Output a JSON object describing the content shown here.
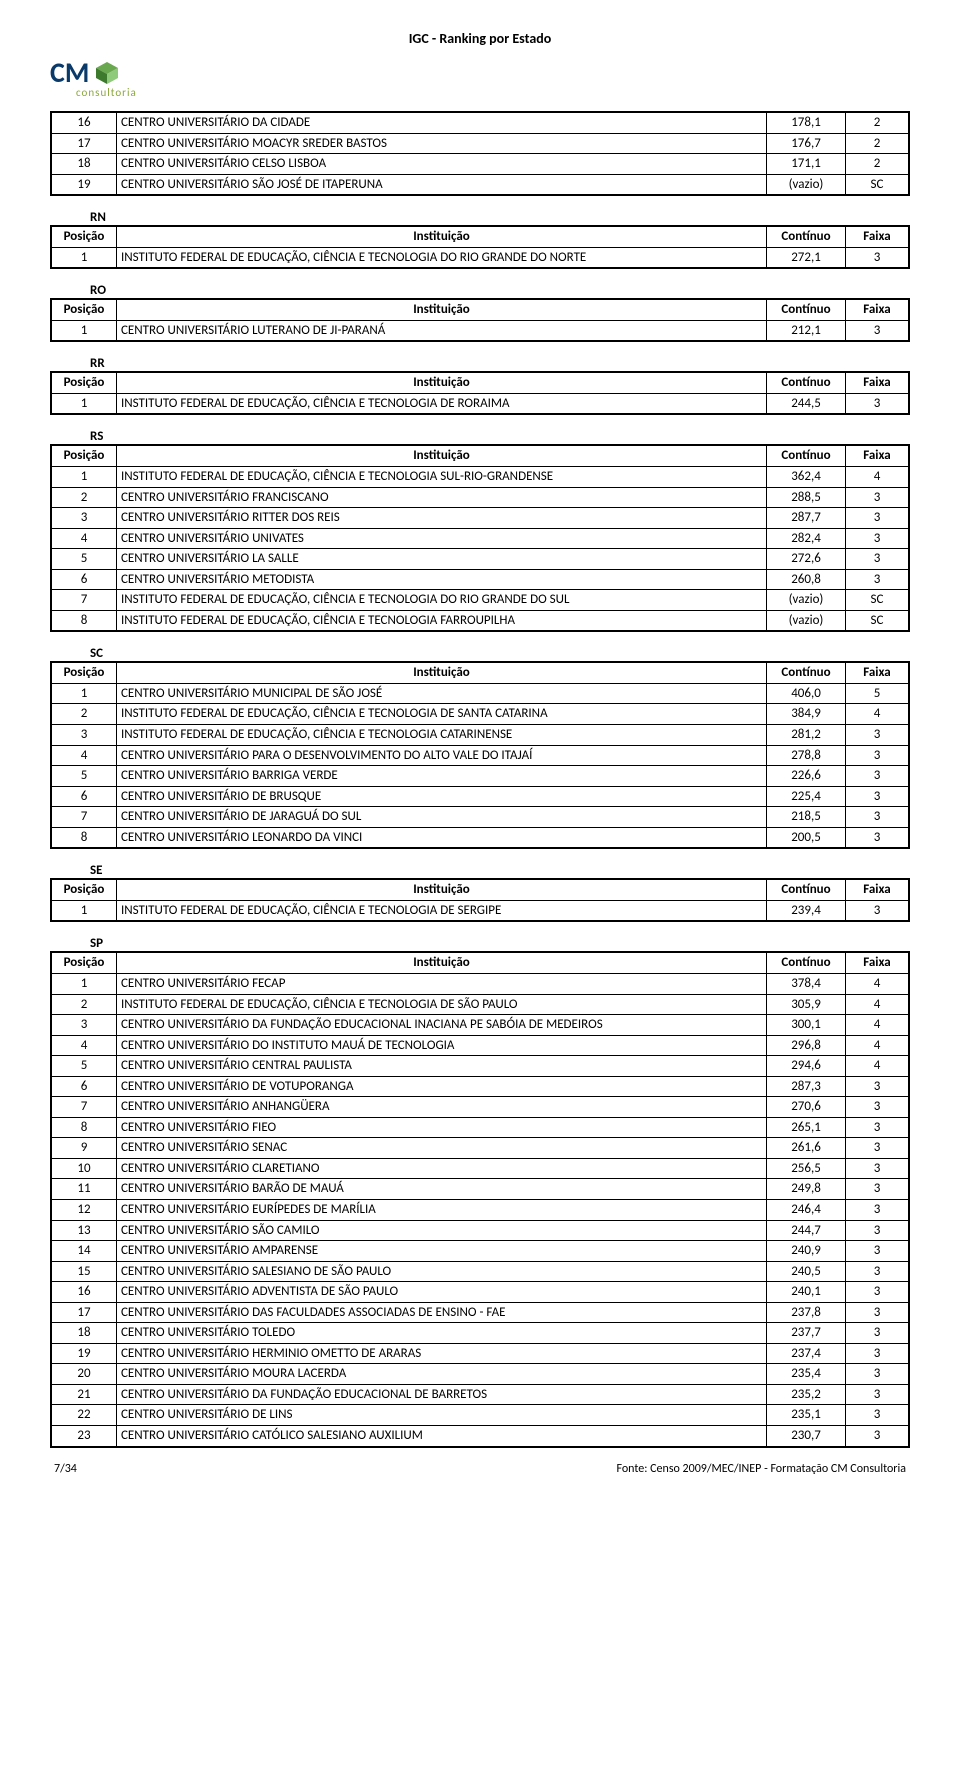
{
  "header_title": "IGC - Ranking por Estado",
  "logo_text": "CM",
  "logo_sub": "consultoria",
  "col_headers": {
    "posicao": "Posição",
    "instituicao": "Instituição",
    "continuo": "Contínuo",
    "faixa": "Faixa"
  },
  "footer": {
    "page": "7/34",
    "source": "Fonte: Censo 2009/MEC/INEP - Formatação CM Consultoria"
  },
  "sections": [
    {
      "state": "",
      "continuation": true,
      "rows": [
        {
          "pos": "16",
          "inst": "CENTRO UNIVERSITÁRIO DA CIDADE",
          "cont": "178,1",
          "faixa": "2"
        },
        {
          "pos": "17",
          "inst": "CENTRO UNIVERSITÁRIO MOACYR SREDER BASTOS",
          "cont": "176,7",
          "faixa": "2"
        },
        {
          "pos": "18",
          "inst": "CENTRO UNIVERSITÁRIO CELSO LISBOA",
          "cont": "171,1",
          "faixa": "2"
        },
        {
          "pos": "19",
          "inst": "CENTRO UNIVERSITÁRIO SÃO JOSÉ DE ITAPERUNA",
          "cont": "(vazio)",
          "faixa": "SC"
        }
      ]
    },
    {
      "state": "RN",
      "rows": [
        {
          "pos": "1",
          "inst": "INSTITUTO FEDERAL DE EDUCAÇÃO, CIÊNCIA E TECNOLOGIA DO RIO GRANDE DO NORTE",
          "cont": "272,1",
          "faixa": "3"
        }
      ]
    },
    {
      "state": "RO",
      "rows": [
        {
          "pos": "1",
          "inst": "CENTRO UNIVERSITÁRIO LUTERANO DE JI-PARANÁ",
          "cont": "212,1",
          "faixa": "3"
        }
      ]
    },
    {
      "state": "RR",
      "rows": [
        {
          "pos": "1",
          "inst": "INSTITUTO FEDERAL DE EDUCAÇÃO, CIÊNCIA E TECNOLOGIA DE RORAIMA",
          "cont": "244,5",
          "faixa": "3"
        }
      ]
    },
    {
      "state": "RS",
      "rows": [
        {
          "pos": "1",
          "inst": "INSTITUTO FEDERAL DE EDUCAÇÃO, CIÊNCIA E TECNOLOGIA SUL-RIO-GRANDENSE",
          "cont": "362,4",
          "faixa": "4"
        },
        {
          "pos": "2",
          "inst": "CENTRO UNIVERSITÁRIO FRANCISCANO",
          "cont": "288,5",
          "faixa": "3"
        },
        {
          "pos": "3",
          "inst": "CENTRO UNIVERSITÁRIO RITTER DOS REIS",
          "cont": "287,7",
          "faixa": "3"
        },
        {
          "pos": "4",
          "inst": "CENTRO UNIVERSITÁRIO UNIVATES",
          "cont": "282,4",
          "faixa": "3"
        },
        {
          "pos": "5",
          "inst": "CENTRO UNIVERSITÁRIO LA SALLE",
          "cont": "272,6",
          "faixa": "3"
        },
        {
          "pos": "6",
          "inst": "CENTRO UNIVERSITÁRIO METODISTA",
          "cont": "260,8",
          "faixa": "3"
        },
        {
          "pos": "7",
          "inst": "INSTITUTO FEDERAL DE EDUCAÇÃO, CIÊNCIA E TECNOLOGIA DO RIO GRANDE DO SUL",
          "cont": "(vazio)",
          "faixa": "SC"
        },
        {
          "pos": "8",
          "inst": "INSTITUTO FEDERAL DE EDUCAÇÃO, CIÊNCIA E TECNOLOGIA FARROUPILHA",
          "cont": "(vazio)",
          "faixa": "SC"
        }
      ]
    },
    {
      "state": "SC",
      "rows": [
        {
          "pos": "1",
          "inst": "CENTRO UNIVERSITÁRIO MUNICIPAL DE SÃO JOSÉ",
          "cont": "406,0",
          "faixa": "5"
        },
        {
          "pos": "2",
          "inst": "INSTITUTO FEDERAL DE EDUCAÇÃO, CIÊNCIA E TECNOLOGIA  DE SANTA CATARINA",
          "cont": "384,9",
          "faixa": "4"
        },
        {
          "pos": "3",
          "inst": "INSTITUTO FEDERAL DE EDUCAÇÃO, CIÊNCIA E TECNOLOGIA CATARINENSE",
          "cont": "281,2",
          "faixa": "3"
        },
        {
          "pos": "4",
          "inst": "CENTRO UNIVERSITÁRIO PARA O DESENVOLVIMENTO DO ALTO VALE DO ITAJAÍ",
          "cont": "278,8",
          "faixa": "3"
        },
        {
          "pos": "5",
          "inst": "CENTRO UNIVERSITÁRIO BARRIGA VERDE",
          "cont": "226,6",
          "faixa": "3"
        },
        {
          "pos": "6",
          "inst": "CENTRO UNIVERSITÁRIO DE BRUSQUE",
          "cont": "225,4",
          "faixa": "3"
        },
        {
          "pos": "7",
          "inst": "CENTRO UNIVERSITÁRIO DE JARAGUÁ DO SUL",
          "cont": "218,5",
          "faixa": "3"
        },
        {
          "pos": "8",
          "inst": "CENTRO UNIVERSITÁRIO LEONARDO DA VINCI",
          "cont": "200,5",
          "faixa": "3"
        }
      ]
    },
    {
      "state": "SE",
      "rows": [
        {
          "pos": "1",
          "inst": "INSTITUTO FEDERAL DE EDUCAÇÃO, CIÊNCIA E TECNOLOGIA DE SERGIPE",
          "cont": "239,4",
          "faixa": "3"
        }
      ]
    },
    {
      "state": "SP",
      "rows": [
        {
          "pos": "1",
          "inst": "CENTRO UNIVERSITÁRIO FECAP",
          "cont": "378,4",
          "faixa": "4"
        },
        {
          "pos": "2",
          "inst": "INSTITUTO FEDERAL DE EDUCAÇÃO, CIÊNCIA E TECNOLOGIA DE SÃO PAULO",
          "cont": "305,9",
          "faixa": "4"
        },
        {
          "pos": "3",
          "inst": "CENTRO UNIVERSITÁRIO DA FUNDAÇÃO EDUCACIONAL INACIANA PE SABÓIA DE MEDEIROS",
          "cont": "300,1",
          "faixa": "4"
        },
        {
          "pos": "4",
          "inst": "CENTRO UNIVERSITÁRIO DO INSTITUTO MAUÁ DE TECNOLOGIA",
          "cont": "296,8",
          "faixa": "4"
        },
        {
          "pos": "5",
          "inst": "CENTRO UNIVERSITÁRIO CENTRAL PAULISTA",
          "cont": "294,6",
          "faixa": "4"
        },
        {
          "pos": "6",
          "inst": "CENTRO UNIVERSITÁRIO DE VOTUPORANGA",
          "cont": "287,3",
          "faixa": "3"
        },
        {
          "pos": "7",
          "inst": "CENTRO UNIVERSITÁRIO ANHANGÜERA",
          "cont": "270,6",
          "faixa": "3"
        },
        {
          "pos": "8",
          "inst": "CENTRO UNIVERSITÁRIO FIEO",
          "cont": "265,1",
          "faixa": "3"
        },
        {
          "pos": "9",
          "inst": "CENTRO UNIVERSITÁRIO SENAC",
          "cont": "261,6",
          "faixa": "3"
        },
        {
          "pos": "10",
          "inst": "CENTRO UNIVERSITÁRIO CLARETIANO",
          "cont": "256,5",
          "faixa": "3"
        },
        {
          "pos": "11",
          "inst": "CENTRO UNIVERSITÁRIO BARÃO DE MAUÁ",
          "cont": "249,8",
          "faixa": "3"
        },
        {
          "pos": "12",
          "inst": "CENTRO UNIVERSITÁRIO EURÍPEDES DE MARÍLIA",
          "cont": "246,4",
          "faixa": "3"
        },
        {
          "pos": "13",
          "inst": "CENTRO UNIVERSITÁRIO SÃO CAMILO",
          "cont": "244,7",
          "faixa": "3"
        },
        {
          "pos": "14",
          "inst": "CENTRO UNIVERSITÁRIO AMPARENSE",
          "cont": "240,9",
          "faixa": "3"
        },
        {
          "pos": "15",
          "inst": "CENTRO UNIVERSITÁRIO SALESIANO DE SÃO PAULO",
          "cont": "240,5",
          "faixa": "3"
        },
        {
          "pos": "16",
          "inst": "CENTRO UNIVERSITÁRIO ADVENTISTA DE SÃO PAULO",
          "cont": "240,1",
          "faixa": "3"
        },
        {
          "pos": "17",
          "inst": "CENTRO UNIVERSITÁRIO DAS FACULDADES ASSOCIADAS DE ENSINO - FAE",
          "cont": "237,8",
          "faixa": "3"
        },
        {
          "pos": "18",
          "inst": "CENTRO UNIVERSITÁRIO TOLEDO",
          "cont": "237,7",
          "faixa": "3"
        },
        {
          "pos": "19",
          "inst": "CENTRO UNIVERSITÁRIO HERMINIO OMETTO DE ARARAS",
          "cont": "237,4",
          "faixa": "3"
        },
        {
          "pos": "20",
          "inst": "CENTRO UNIVERSITÁRIO MOURA LACERDA",
          "cont": "235,4",
          "faixa": "3"
        },
        {
          "pos": "21",
          "inst": "CENTRO UNIVERSITÁRIO DA FUNDAÇÃO EDUCACIONAL DE BARRETOS",
          "cont": "235,2",
          "faixa": "3"
        },
        {
          "pos": "22",
          "inst": "CENTRO UNIVERSITÁRIO DE LINS",
          "cont": "235,1",
          "faixa": "3"
        },
        {
          "pos": "23",
          "inst": "CENTRO UNIVERSITÁRIO CATÓLICO SALESIANO AUXILIUM",
          "cont": "230,7",
          "faixa": "3"
        }
      ]
    }
  ]
}
